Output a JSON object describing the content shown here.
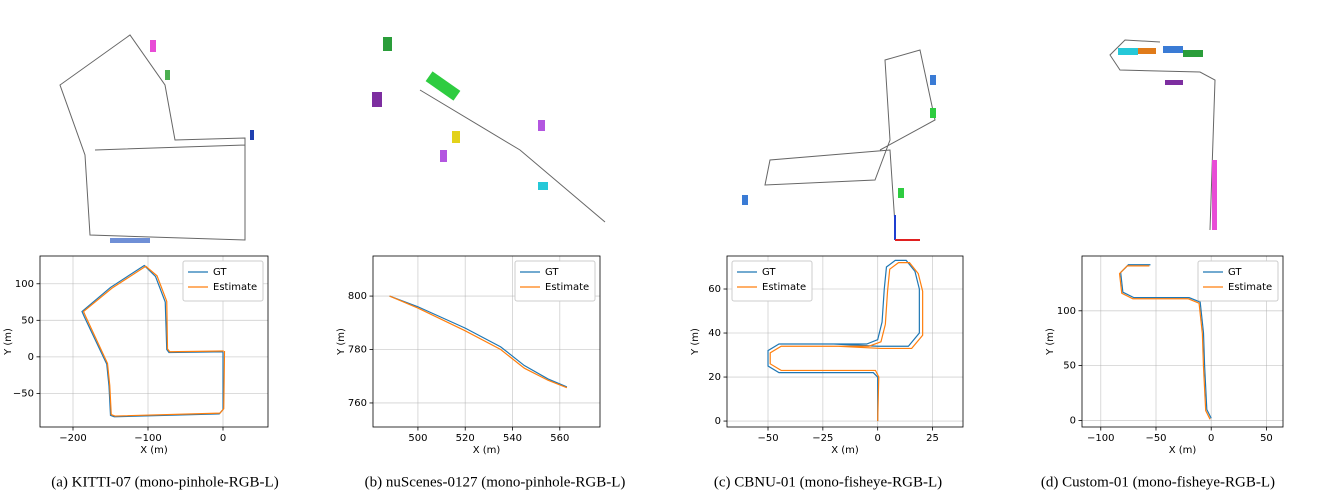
{
  "chart_data": [
    {
      "type": "line",
      "caption": "(a) KITTI-07 (mono-pinhole-RGB-L)",
      "xlabel": "X (m)",
      "ylabel": "Y (m)",
      "grid": true,
      "legend": "upper right",
      "xlim": [
        -244,
        60
      ],
      "ylim": [
        -96,
        138
      ],
      "xticks": [
        {
          "value": -200,
          "label": "−200"
        },
        {
          "value": -100,
          "label": "−100"
        },
        0
      ],
      "yticks": [
        {
          "value": -50,
          "label": "−50"
        },
        0,
        50,
        100
      ],
      "series": [
        {
          "name": "GT",
          "color": "#1f77b4",
          "x": [
            0,
            -72,
            -75,
            -77,
            -90,
            -105,
            -150,
            -188,
            -185,
            -155,
            -152,
            -150,
            -145,
            -5,
            0,
            0
          ],
          "values": [
            7,
            6,
            10,
            75,
            110,
            125,
            95,
            62,
            55,
            -10,
            -40,
            -80,
            -82,
            -78,
            -72,
            7
          ]
        },
        {
          "name": "Estimate",
          "color": "#ff7f0e",
          "x": [
            1,
            -71,
            -74,
            -75,
            -88,
            -103,
            -148,
            -186,
            -183,
            -154,
            -151,
            -149,
            -144,
            -4,
            1,
            2
          ],
          "values": [
            8,
            7,
            11,
            76,
            111,
            124,
            94,
            62,
            55,
            -9,
            -39,
            -79,
            -81,
            -77,
            -71,
            8
          ]
        }
      ]
    },
    {
      "type": "line",
      "caption": "(b) nuScenes-0127 (mono-pinhole-RGB-L)",
      "xlabel": "X (m)",
      "ylabel": "Y (m)",
      "grid": true,
      "legend": "upper right",
      "xlim": [
        481,
        577
      ],
      "ylim": [
        751,
        815
      ],
      "xticks": [
        500,
        520,
        540,
        560
      ],
      "yticks": [
        760,
        780,
        800
      ],
      "series": [
        {
          "name": "GT",
          "color": "#1f77b4",
          "x": [
            488,
            500,
            520,
            535,
            545,
            555,
            563
          ],
          "values": [
            800,
            796,
            788,
            781,
            774,
            769,
            766
          ]
        },
        {
          "name": "Estimate",
          "color": "#ff7f0e",
          "x": [
            488,
            500,
            520,
            535,
            545,
            555,
            563
          ],
          "values": [
            800,
            795.5,
            787,
            780,
            773,
            768.5,
            765.7
          ]
        }
      ]
    },
    {
      "type": "line",
      "caption": "(c) CBNU-01 (mono-fisheye-RGB-L)",
      "xlabel": "X (m)",
      "ylabel": "Y (m)",
      "grid": true,
      "legend": "upper left",
      "xlim": [
        -68.7,
        38.9
      ],
      "ylim": [
        -2.7,
        75
      ],
      "xticks": [
        {
          "value": -50,
          "label": "−50"
        },
        {
          "value": -25,
          "label": "−25"
        },
        0,
        25
      ],
      "yticks": [
        0,
        20,
        40,
        60
      ],
      "series": [
        {
          "name": "GT",
          "color": "#1f77b4",
          "x": [
            0,
            0,
            -2,
            -45,
            -50,
            -50,
            -45,
            -5,
            0,
            2,
            3,
            4,
            8,
            13,
            17,
            19,
            19,
            14,
            0,
            -20
          ],
          "values": [
            0,
            20,
            22,
            22,
            25,
            32,
            35,
            35,
            37,
            45,
            60,
            70,
            73,
            73,
            68,
            60,
            40,
            34,
            34,
            35
          ]
        },
        {
          "name": "Estimate",
          "color": "#ff7f0e",
          "x": [
            0,
            0.5,
            -1,
            -44,
            -49,
            -49,
            -44,
            -4,
            1.5,
            3.5,
            4.5,
            5.5,
            9.5,
            14.5,
            18.5,
            20.5,
            20.5,
            15.5,
            1.5,
            -18
          ],
          "values": [
            0,
            20,
            23,
            23,
            26,
            31,
            34,
            34,
            36,
            44,
            59,
            69,
            72,
            72,
            67,
            59,
            39,
            33,
            33,
            34
          ]
        }
      ]
    },
    {
      "type": "line",
      "caption": "(d) Custom-01 (mono-fisheye-RGB-L)",
      "xlabel": "X (m)",
      "ylabel": "Y (m)",
      "grid": true,
      "legend": "upper right",
      "xlim": [
        -117,
        65
      ],
      "ylim": [
        -6,
        150
      ],
      "xticks": [
        {
          "value": -100,
          "label": "−100"
        },
        {
          "value": -50,
          "label": "−50"
        },
        0,
        50
      ],
      "yticks": [
        0,
        50,
        100
      ],
      "series": [
        {
          "name": "GT",
          "color": "#1f77b4",
          "x": [
            -55,
            -75,
            -82,
            -80,
            -70,
            -20,
            -10,
            -7,
            -6,
            -4,
            0
          ],
          "values": [
            142,
            142,
            135,
            117,
            112,
            112,
            108,
            80,
            50,
            10,
            2
          ]
        },
        {
          "name": "Estimate",
          "color": "#ff7f0e",
          "x": [
            -56,
            -76,
            -83,
            -81,
            -71,
            -21,
            -11,
            -8,
            -7,
            -5,
            -1
          ],
          "values": [
            141,
            141,
            134,
            116,
            111,
            111,
            107,
            79,
            49,
            9,
            1
          ]
        }
      ]
    }
  ]
}
